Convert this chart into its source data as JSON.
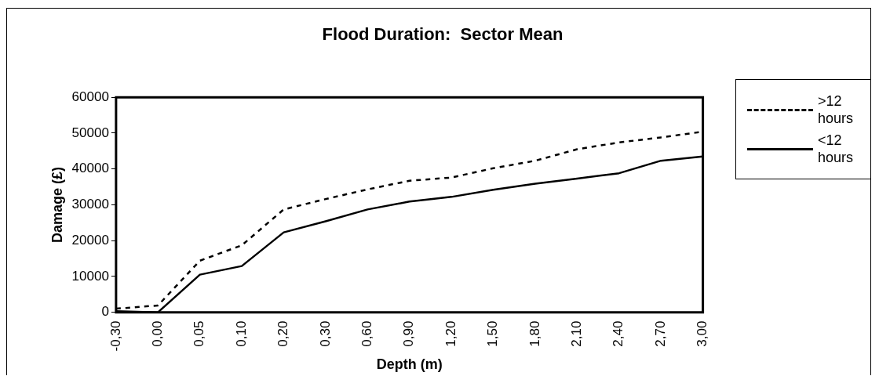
{
  "chart_data": {
    "type": "line",
    "title": "Flood Duration:  Sector Mean",
    "xlabel": "Depth (m)",
    "ylabel": "Damage (£)",
    "categories": [
      "-0,30",
      "0,00",
      "0,05",
      "0,10",
      "0,20",
      "0,30",
      "0,60",
      "0,90",
      "1,20",
      "1,50",
      "1,80",
      "2,10",
      "2,40",
      "2,70",
      "3,00"
    ],
    "series": [
      {
        "name": ">12 hours",
        "color": "#000000",
        "line_style": "dashed",
        "values": [
          1000,
          1900,
          14400,
          18700,
          28700,
          31600,
          34300,
          36700,
          37600,
          40200,
          42300,
          45500,
          47400,
          48800,
          50400
        ]
      },
      {
        "name": "<12 hours",
        "color": "#000000",
        "line_style": "solid",
        "values": [
          300,
          0,
          10500,
          12900,
          22300,
          25400,
          28700,
          30900,
          32200,
          34200,
          35900,
          37300,
          38800,
          42300,
          43500
        ]
      }
    ],
    "ylim": [
      0,
      60000
    ],
    "yticks": [
      0,
      10000,
      20000,
      30000,
      40000,
      50000,
      60000
    ],
    "grid": false,
    "legend": "right",
    "marker": "none"
  }
}
